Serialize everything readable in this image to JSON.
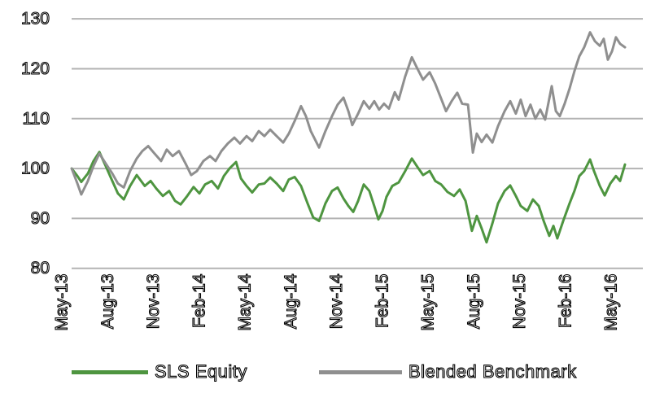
{
  "colors": {
    "fund_line": "#4e9540",
    "benchmark_line": "#8f8f8f",
    "gridline": "#b3b3b3",
    "axis_text_outline": "#000000",
    "background": "#ffffff"
  },
  "legend": {
    "fund_label": "SLS Equity",
    "benchmark_label": "Blended Benchmark"
  },
  "chart_data": {
    "type": "line",
    "title": "",
    "xlabel": "",
    "ylabel": "",
    "grid": "horizontal",
    "legend_position": "bottom",
    "y_axis": {
      "min": 80,
      "max": 130,
      "ticks": [
        130,
        120,
        110,
        100,
        90,
        80
      ]
    },
    "x_axis": {
      "unit": "months-since-May-2013",
      "tick_labels": [
        "May-13",
        "Aug-13",
        "Nov-13",
        "Feb-14",
        "May-14",
        "Aug-14",
        "Nov-14",
        "Feb-15",
        "May-15",
        "Aug-15",
        "Nov-15",
        "Feb-16",
        "May-16"
      ],
      "tick_months": [
        0,
        3,
        6,
        9,
        12,
        15,
        18,
        21,
        24,
        27,
        30,
        33,
        36
      ]
    },
    "series": [
      {
        "key": "fund",
        "name": "SLS Equity",
        "color": "#4e9540",
        "points": [
          [
            0.7,
            100
          ],
          [
            1.07,
            98.5
          ],
          [
            1.33,
            97.3
          ],
          [
            1.76,
            99
          ],
          [
            2.13,
            101.5
          ],
          [
            2.51,
            103.3
          ],
          [
            2.93,
            100.5
          ],
          [
            3.36,
            97.5
          ],
          [
            3.73,
            95
          ],
          [
            4.11,
            93.8
          ],
          [
            4.53,
            96.5
          ],
          [
            4.96,
            98.7
          ],
          [
            5.49,
            96.5
          ],
          [
            5.87,
            97.5
          ],
          [
            6.24,
            96
          ],
          [
            6.67,
            94.5
          ],
          [
            7.09,
            95.5
          ],
          [
            7.47,
            93.5
          ],
          [
            7.84,
            92.8
          ],
          [
            8.27,
            94.5
          ],
          [
            8.69,
            96.3
          ],
          [
            9.07,
            95
          ],
          [
            9.44,
            96.8
          ],
          [
            9.87,
            97.5
          ],
          [
            10.29,
            96
          ],
          [
            10.67,
            98.5
          ],
          [
            11.04,
            100
          ],
          [
            11.47,
            101.3
          ],
          [
            11.79,
            98
          ],
          [
            12.16,
            96.5
          ],
          [
            12.53,
            95.2
          ],
          [
            12.96,
            96.8
          ],
          [
            13.33,
            97
          ],
          [
            13.71,
            98.2
          ],
          [
            14.13,
            97
          ],
          [
            14.56,
            95.5
          ],
          [
            14.93,
            97.8
          ],
          [
            15.31,
            98.3
          ],
          [
            15.73,
            96.5
          ],
          [
            16.16,
            93
          ],
          [
            16.53,
            90.2
          ],
          [
            16.91,
            89.5
          ],
          [
            17.33,
            93
          ],
          [
            17.76,
            95.5
          ],
          [
            18.13,
            96.2
          ],
          [
            18.51,
            94
          ],
          [
            18.83,
            92.5
          ],
          [
            19.15,
            91.3
          ],
          [
            19.47,
            93.5
          ],
          [
            19.84,
            96.8
          ],
          [
            20.21,
            95.5
          ],
          [
            20.53,
            92.5
          ],
          [
            20.8,
            89.8
          ],
          [
            21.07,
            91.5
          ],
          [
            21.33,
            94.3
          ],
          [
            21.71,
            96.5
          ],
          [
            22.13,
            97.2
          ],
          [
            22.56,
            99.5
          ],
          [
            22.99,
            102
          ],
          [
            23.36,
            100.3
          ],
          [
            23.73,
            98.7
          ],
          [
            24.16,
            99.5
          ],
          [
            24.53,
            97.5
          ],
          [
            24.91,
            96.8
          ],
          [
            25.33,
            95.3
          ],
          [
            25.76,
            94.5
          ],
          [
            26.13,
            95.8
          ],
          [
            26.51,
            93.5
          ],
          [
            26.93,
            87.5
          ],
          [
            27.25,
            90.5
          ],
          [
            27.57,
            88
          ],
          [
            27.89,
            85.2
          ],
          [
            28.27,
            89
          ],
          [
            28.64,
            93
          ],
          [
            29.07,
            95.5
          ],
          [
            29.44,
            96.6
          ],
          [
            29.81,
            94.5
          ],
          [
            30.13,
            92.5
          ],
          [
            30.56,
            91.5
          ],
          [
            30.93,
            93.8
          ],
          [
            31.31,
            92.5
          ],
          [
            31.63,
            89.5
          ],
          [
            32,
            86.5
          ],
          [
            32.27,
            88.5
          ],
          [
            32.53,
            86
          ],
          [
            32.91,
            89.5
          ],
          [
            33.33,
            93
          ],
          [
            33.65,
            95.5
          ],
          [
            33.97,
            98.5
          ],
          [
            34.29,
            99.5
          ],
          [
            34.67,
            101.8
          ],
          [
            34.93,
            99.5
          ],
          [
            35.31,
            96.5
          ],
          [
            35.63,
            94.6
          ],
          [
            36,
            97
          ],
          [
            36.37,
            98.5
          ],
          [
            36.64,
            97.5
          ],
          [
            36.96,
            100.8
          ]
        ]
      },
      {
        "key": "benchmark",
        "name": "Blended Benchmark",
        "color": "#8f8f8f",
        "points": [
          [
            0.7,
            100
          ],
          [
            1.07,
            97
          ],
          [
            1.33,
            94.8
          ],
          [
            1.76,
            97.5
          ],
          [
            2.13,
            100.5
          ],
          [
            2.51,
            103
          ],
          [
            2.93,
            101
          ],
          [
            3.36,
            99
          ],
          [
            3.73,
            97
          ],
          [
            4.11,
            96.2
          ],
          [
            4.53,
            99.5
          ],
          [
            4.96,
            102
          ],
          [
            5.33,
            103.5
          ],
          [
            5.71,
            104.5
          ],
          [
            6.13,
            103
          ],
          [
            6.56,
            101.5
          ],
          [
            6.93,
            103.8
          ],
          [
            7.31,
            102.5
          ],
          [
            7.73,
            103.5
          ],
          [
            8.16,
            101
          ],
          [
            8.53,
            98.7
          ],
          [
            8.91,
            99.5
          ],
          [
            9.33,
            101.5
          ],
          [
            9.76,
            102.5
          ],
          [
            10.13,
            101.5
          ],
          [
            10.51,
            103.5
          ],
          [
            10.93,
            105
          ],
          [
            11.36,
            106.2
          ],
          [
            11.73,
            105
          ],
          [
            12.16,
            106.5
          ],
          [
            12.53,
            105.5
          ],
          [
            12.96,
            107.5
          ],
          [
            13.33,
            106.5
          ],
          [
            13.71,
            107.8
          ],
          [
            14.13,
            106.5
          ],
          [
            14.56,
            105.2
          ],
          [
            14.93,
            107
          ],
          [
            15.31,
            109.5
          ],
          [
            15.73,
            112.5
          ],
          [
            16.05,
            110.5
          ],
          [
            16.37,
            107.5
          ],
          [
            16.91,
            104.2
          ],
          [
            17.33,
            107.5
          ],
          [
            17.76,
            110.5
          ],
          [
            18.13,
            112.8
          ],
          [
            18.51,
            114.2
          ],
          [
            18.83,
            111.5
          ],
          [
            19.09,
            108.7
          ],
          [
            19.47,
            111
          ],
          [
            19.84,
            113.5
          ],
          [
            20.21,
            112
          ],
          [
            20.53,
            113.5
          ],
          [
            20.85,
            111.8
          ],
          [
            21.17,
            113
          ],
          [
            21.49,
            112
          ],
          [
            21.87,
            115.3
          ],
          [
            22.13,
            113.8
          ],
          [
            22.56,
            118.5
          ],
          [
            22.99,
            122.3
          ],
          [
            23.36,
            120
          ],
          [
            23.73,
            117.8
          ],
          [
            24.16,
            119.3
          ],
          [
            24.53,
            117
          ],
          [
            24.91,
            114
          ],
          [
            25.23,
            111.5
          ],
          [
            25.6,
            113.5
          ],
          [
            25.97,
            115.2
          ],
          [
            26.29,
            113
          ],
          [
            26.67,
            112.8
          ],
          [
            26.99,
            103.2
          ],
          [
            27.25,
            107
          ],
          [
            27.57,
            105.3
          ],
          [
            27.89,
            106.8
          ],
          [
            28.27,
            105.2
          ],
          [
            28.64,
            108.5
          ],
          [
            29.07,
            111.5
          ],
          [
            29.44,
            113.5
          ],
          [
            29.81,
            111
          ],
          [
            30.13,
            113.8
          ],
          [
            30.45,
            110.5
          ],
          [
            30.77,
            112.8
          ],
          [
            31.09,
            110
          ],
          [
            31.41,
            111.8
          ],
          [
            31.73,
            109.8
          ],
          [
            32,
            114
          ],
          [
            32.16,
            116.5
          ],
          [
            32.43,
            111.5
          ],
          [
            32.69,
            110.5
          ],
          [
            33.01,
            113
          ],
          [
            33.33,
            116
          ],
          [
            33.65,
            119.5
          ],
          [
            33.97,
            122.5
          ],
          [
            34.29,
            124.3
          ],
          [
            34.67,
            127.3
          ],
          [
            34.99,
            125.5
          ],
          [
            35.31,
            124.6
          ],
          [
            35.57,
            126
          ],
          [
            35.84,
            121.8
          ],
          [
            36.11,
            123.5
          ],
          [
            36.37,
            126.3
          ],
          [
            36.64,
            125
          ],
          [
            36.96,
            124.3
          ]
        ]
      }
    ]
  }
}
